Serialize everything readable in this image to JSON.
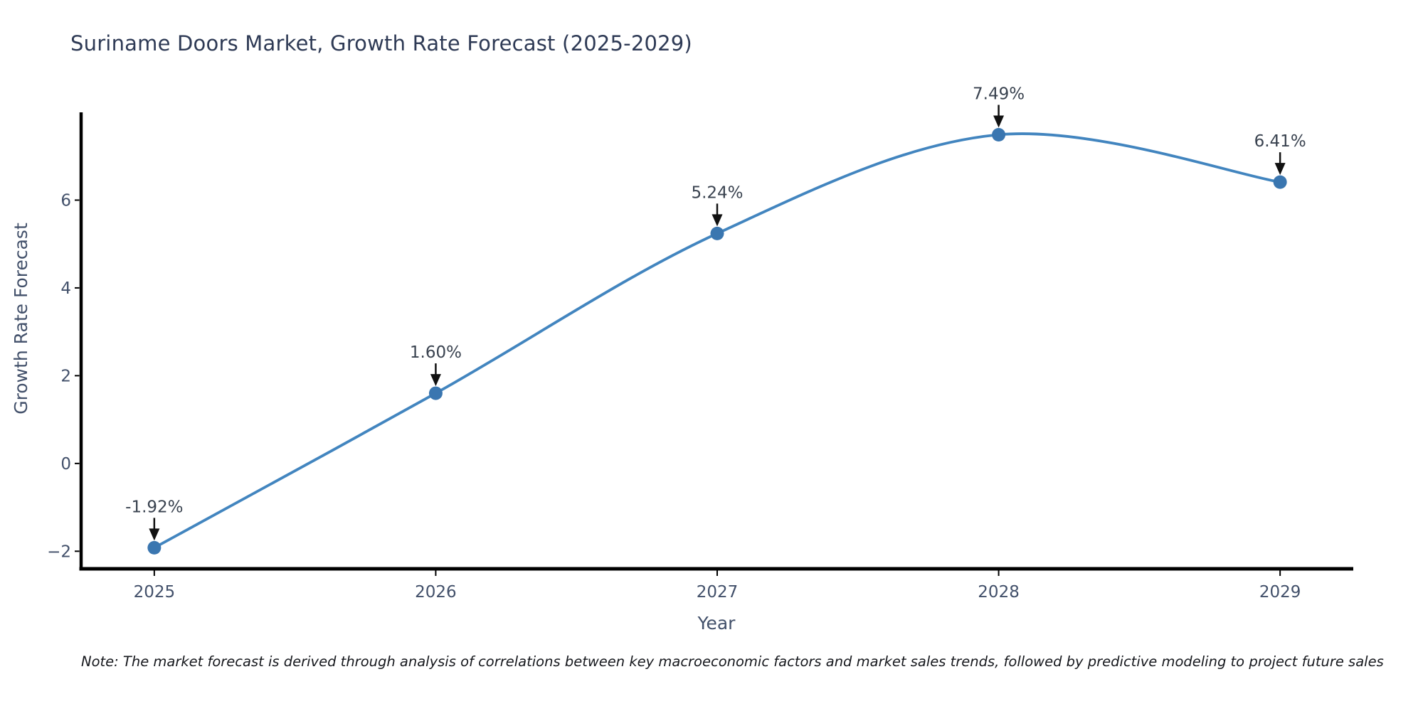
{
  "chart": {
    "title": "Suriname Doors Market, Growth Rate Forecast (2025-2029)",
    "xlabel": "Year",
    "ylabel": "Growth Rate Forecast",
    "note": "Note: The market forecast is derived through analysis of correlations between key macroeconomic factors and market sales trends, followed by predictive modeling to project future sales"
  },
  "chart_data": {
    "type": "line",
    "title": "Suriname Doors Market, Growth Rate Forecast (2025-2029)",
    "xlabel": "Year",
    "ylabel": "Growth Rate Forecast",
    "x": [
      2025,
      2026,
      2027,
      2028,
      2029
    ],
    "series": [
      {
        "name": "Growth Rate Forecast",
        "values": [
          -1.92,
          1.6,
          5.24,
          7.49,
          6.41
        ]
      }
    ],
    "point_labels": [
      "-1.92%",
      "1.60%",
      "5.24%",
      "7.49%",
      "6.41%"
    ],
    "xticks": [
      2025,
      2026,
      2027,
      2028,
      2029
    ],
    "xtick_labels": [
      "2025",
      "2026",
      "2027",
      "2028",
      "2029"
    ],
    "yticks": [
      -2,
      0,
      2,
      4,
      6
    ],
    "ytick_labels": [
      "−2",
      "0",
      "2",
      "4",
      "6"
    ],
    "xlim": [
      2024.74,
      2029.26
    ],
    "ylim": [
      -2.4,
      8.0
    ],
    "grid": false,
    "legend": false,
    "curve": "spline",
    "colors": {
      "line": "#4285bf",
      "marker": "#3a76b0",
      "spine": "#000000",
      "tick_text": "#42506a",
      "annotation_text": "#39424f",
      "arrow": "#111111"
    }
  }
}
